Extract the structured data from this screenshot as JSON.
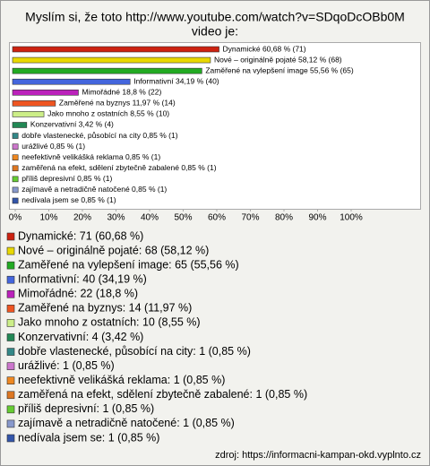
{
  "chart_data": {
    "type": "bar",
    "orientation": "horizontal",
    "title": [
      "Myslím si, že toto http://www.youtube.com/watch?v=SDqoDcOBb0M",
      "video je:"
    ],
    "categories": [
      "Dynamické",
      "Nové – originálně pojaté",
      "Zaměřené na vylepšení image",
      "Informativní",
      "Mimořádné",
      "Zaměřené na byznys",
      "Jako mnoho z ostatních",
      "Konzervativní",
      "dobře vlastenecké, působící na city",
      "urážlivé",
      "neefektivně velikášká reklama",
      "zaměřená na efekt, sdělení zbytečně zabalené",
      "příliš depresivní",
      "zajímavě a netradičně natočené",
      "nedívala jsem se"
    ],
    "values": [
      60.68,
      58.12,
      55.56,
      34.19,
      18.8,
      11.97,
      8.55,
      3.42,
      0.85,
      0.85,
      0.85,
      0.85,
      0.85,
      0.85,
      0.85
    ],
    "value_labels": [
      "Dynamické 60,68 % (71)",
      "Nové – originálně pojaté 58,12 % (68)",
      "Zaměřené na vylepšení image 55,56 % (65)",
      "Informativní 34,19 % (40)",
      "Mimořádné 18,8 % (22)",
      "Zaměřené na byznys 11,97 % (14)",
      "Jako mnoho z ostatních 8,55 % (10)",
      "Konzervativní 3,42 % (4)",
      "dobře vlastenecké, působící na city 0,85 % (1)",
      "urážlivé 0,85 % (1)",
      "neefektivně velikášká reklama 0,85 % (1)",
      "zaměřená na efekt, sdělení zbytečně zabalené 0,85 % (1)",
      "příliš depresivní 0,85 % (1)",
      "zajímavě a netradičně natočené 0,85 % (1)",
      "nedívala jsem se 0,85 % (1)"
    ],
    "legend_labels": [
      "Dynamické: 71 (60,68 %)",
      "Nové – originálně pojaté: 68 (58,12 %)",
      "Zaměřené na vylepšení image: 65 (55,56 %)",
      "Informativní: 40 (34,19 %)",
      "Mimořádné: 22 (18,8 %)",
      "Zaměřené na byznys: 14 (11,97 %)",
      "Jako mnoho z ostatních: 10 (8,55 %)",
      "Konzervativní: 4 (3,42 %)",
      "dobře vlastenecké, působící na city: 1 (0,85 %)",
      "urážlivé: 1 (0,85 %)",
      "neefektivně velikášká reklama: 1 (0,85 %)",
      "zaměřená na efekt, sdělení zbytečně zabalené: 1 (0,85 %)",
      "příliš depresivní: 1 (0,85 %)",
      "zajímavě a netradičně natočené: 1 (0,85 %)",
      "nedívala jsem se: 1 (0,85 %)"
    ],
    "colors": [
      "#cc2211",
      "#e8d800",
      "#22aa22",
      "#4466dd",
      "#bb22bb",
      "#ee5522",
      "#ccee88",
      "#228855",
      "#338888",
      "#cc77cc",
      "#ee8822",
      "#dd7722",
      "#66cc33",
      "#8899cc",
      "#3355aa"
    ],
    "xlim": [
      0,
      100
    ],
    "xticks": [
      {
        "value": 0,
        "label": "0%"
      },
      {
        "value": 10,
        "label": "10%"
      },
      {
        "value": 20,
        "label": "20%"
      },
      {
        "value": 30,
        "label": "30%"
      },
      {
        "value": 40,
        "label": "40%"
      },
      {
        "value": 50,
        "label": "50%"
      },
      {
        "value": 60,
        "label": "60%"
      },
      {
        "value": 70,
        "label": "70%"
      },
      {
        "value": 80,
        "label": "80%"
      },
      {
        "value": 90,
        "label": "90%"
      },
      {
        "value": 100,
        "label": "100%"
      }
    ],
    "source": "zdroj: https://informacni-kampan-okd.vyplnto.cz"
  }
}
